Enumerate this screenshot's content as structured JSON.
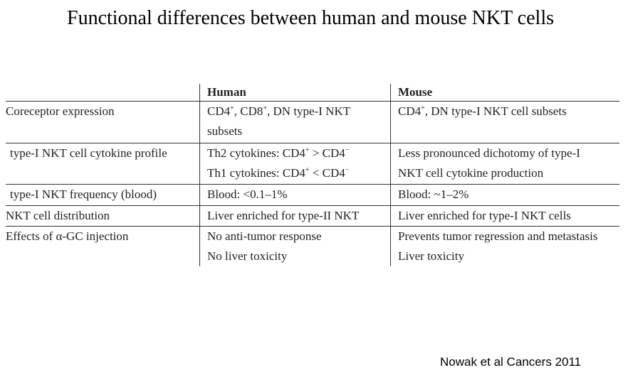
{
  "title": "Functional differences between human and mouse NKT cells",
  "table": {
    "headers": [
      "",
      "Human",
      "Mouse"
    ],
    "rows": [
      {
        "label": "Coreceptor expression",
        "human": [
          [
            "CD4",
            "+",
            ", CD8",
            "+",
            ", DN type-I NKT"
          ],
          [
            "subsets"
          ]
        ],
        "mouse": [
          [
            "CD4",
            "+",
            ", DN type-I NKT cell subsets"
          ]
        ]
      },
      {
        "label": "type-I NKT cell cytokine profile",
        "human": [
          [
            "Th2 cytokines: CD4",
            "+",
            " > CD4",
            "−",
            ""
          ],
          [
            "Th1 cytokines: CD4",
            "+",
            " < CD4",
            "−",
            ""
          ]
        ],
        "mouse": [
          [
            "Less pronounced dichotomy of type-I"
          ],
          [
            "NKT cell cytokine production"
          ]
        ]
      },
      {
        "label": "type-I NKT frequency (blood)",
        "human": [
          [
            "Blood: <0.1–1%"
          ]
        ],
        "mouse": [
          [
            "Blood: ~1–2%"
          ]
        ]
      },
      {
        "label": "NKT cell distribution",
        "human": [
          [
            "Liver enriched for type-II NKT"
          ]
        ],
        "mouse": [
          [
            "Liver enriched for type-I NKT cells"
          ]
        ]
      },
      {
        "label": "Effects of α-GC injection",
        "human": [
          [
            "No anti-tumor response"
          ],
          [
            "No liver toxicity"
          ]
        ],
        "mouse": [
          [
            "Prevents tumor regression and metastasis"
          ],
          [
            "Liver toxicity"
          ]
        ]
      }
    ]
  },
  "source": "Nowak et al Cancers 2011"
}
